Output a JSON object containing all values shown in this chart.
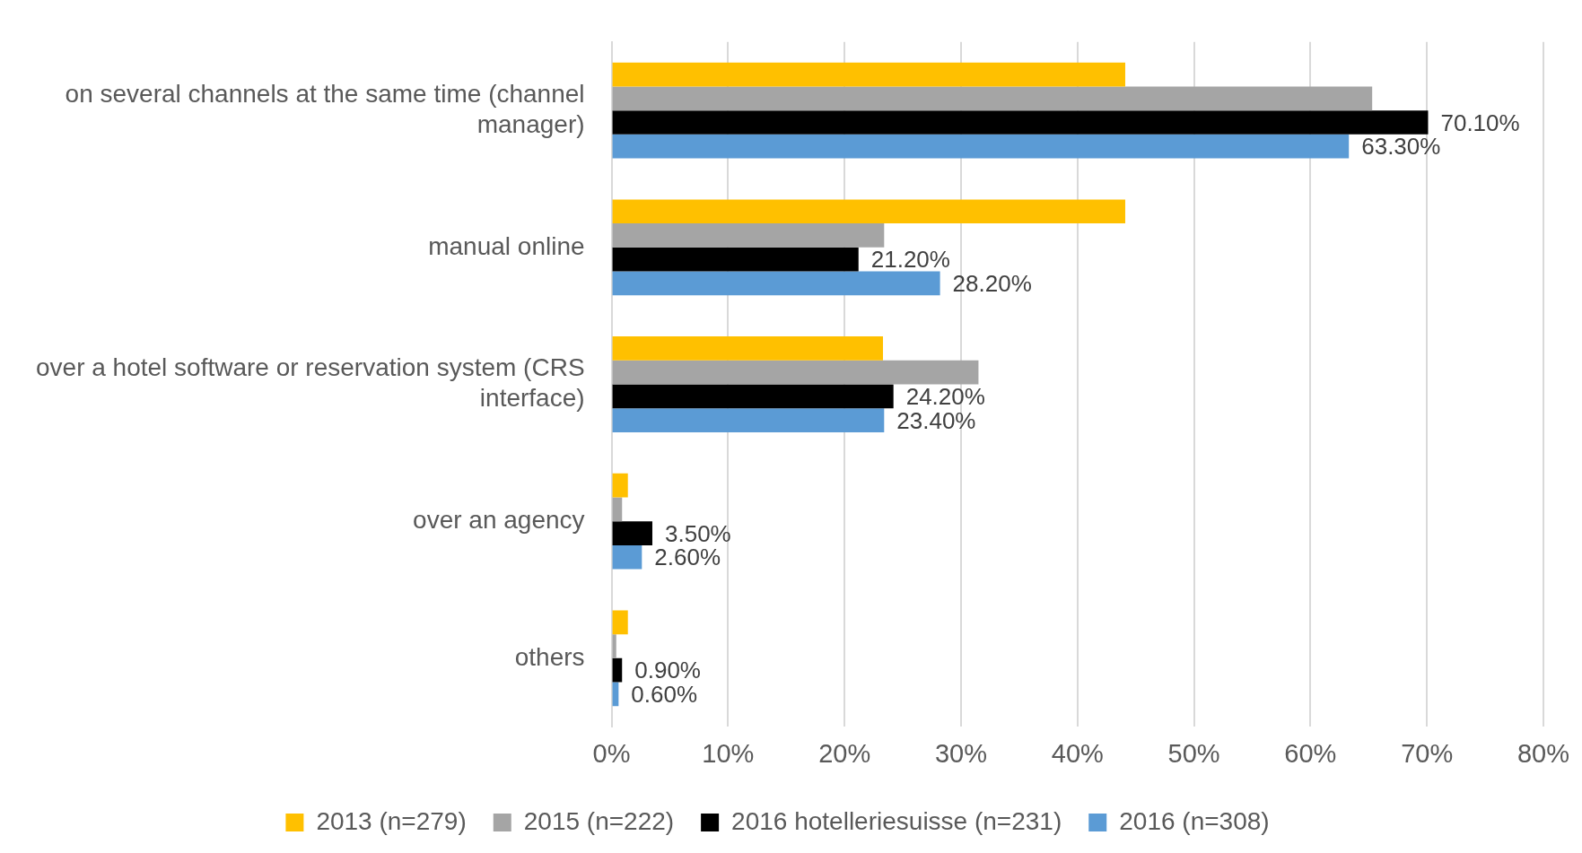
{
  "chart_data": {
    "type": "bar",
    "orientation": "horizontal",
    "categories": [
      "on several channels at the same time (channel manager)",
      "manual online",
      "over a hotel software or reservation system (CRS interface)",
      "over an agency",
      "others"
    ],
    "series": [
      {
        "name": "2013 (n=279)",
        "color": "#ffc000",
        "values": [
          44.1,
          44.1,
          23.3,
          1.4,
          1.4
        ]
      },
      {
        "name": "2015 (n=222)",
        "color": "#a5a5a5",
        "values": [
          65.3,
          23.4,
          31.5,
          0.9,
          0.4
        ]
      },
      {
        "name": "2016 hotelleriesuisse (n=231)",
        "color": "#000000",
        "values": [
          70.1,
          21.2,
          24.2,
          3.5,
          0.9
        ],
        "value_labels": [
          "70.10%",
          "21.20%",
          "24.20%",
          "3.50%",
          "0.90%"
        ]
      },
      {
        "name": "2016 (n=308)",
        "color": "#5b9bd5",
        "values": [
          63.3,
          28.2,
          23.4,
          2.6,
          0.6
        ],
        "value_labels": [
          "63.30%",
          "28.20%",
          "23.40%",
          "2.60%",
          "0.60%"
        ]
      }
    ],
    "xlim": [
      0,
      80
    ],
    "xticks": [
      {
        "value": 0,
        "label": "0%"
      },
      {
        "value": 10,
        "label": "10%"
      },
      {
        "value": 20,
        "label": "20%"
      },
      {
        "value": 30,
        "label": "30%"
      },
      {
        "value": 40,
        "label": "40%"
      },
      {
        "value": 50,
        "label": "50%"
      },
      {
        "value": 60,
        "label": "60%"
      },
      {
        "value": 70,
        "label": "70%"
      },
      {
        "value": 80,
        "label": "80%"
      }
    ],
    "grid": "x",
    "legend": "bottom"
  }
}
